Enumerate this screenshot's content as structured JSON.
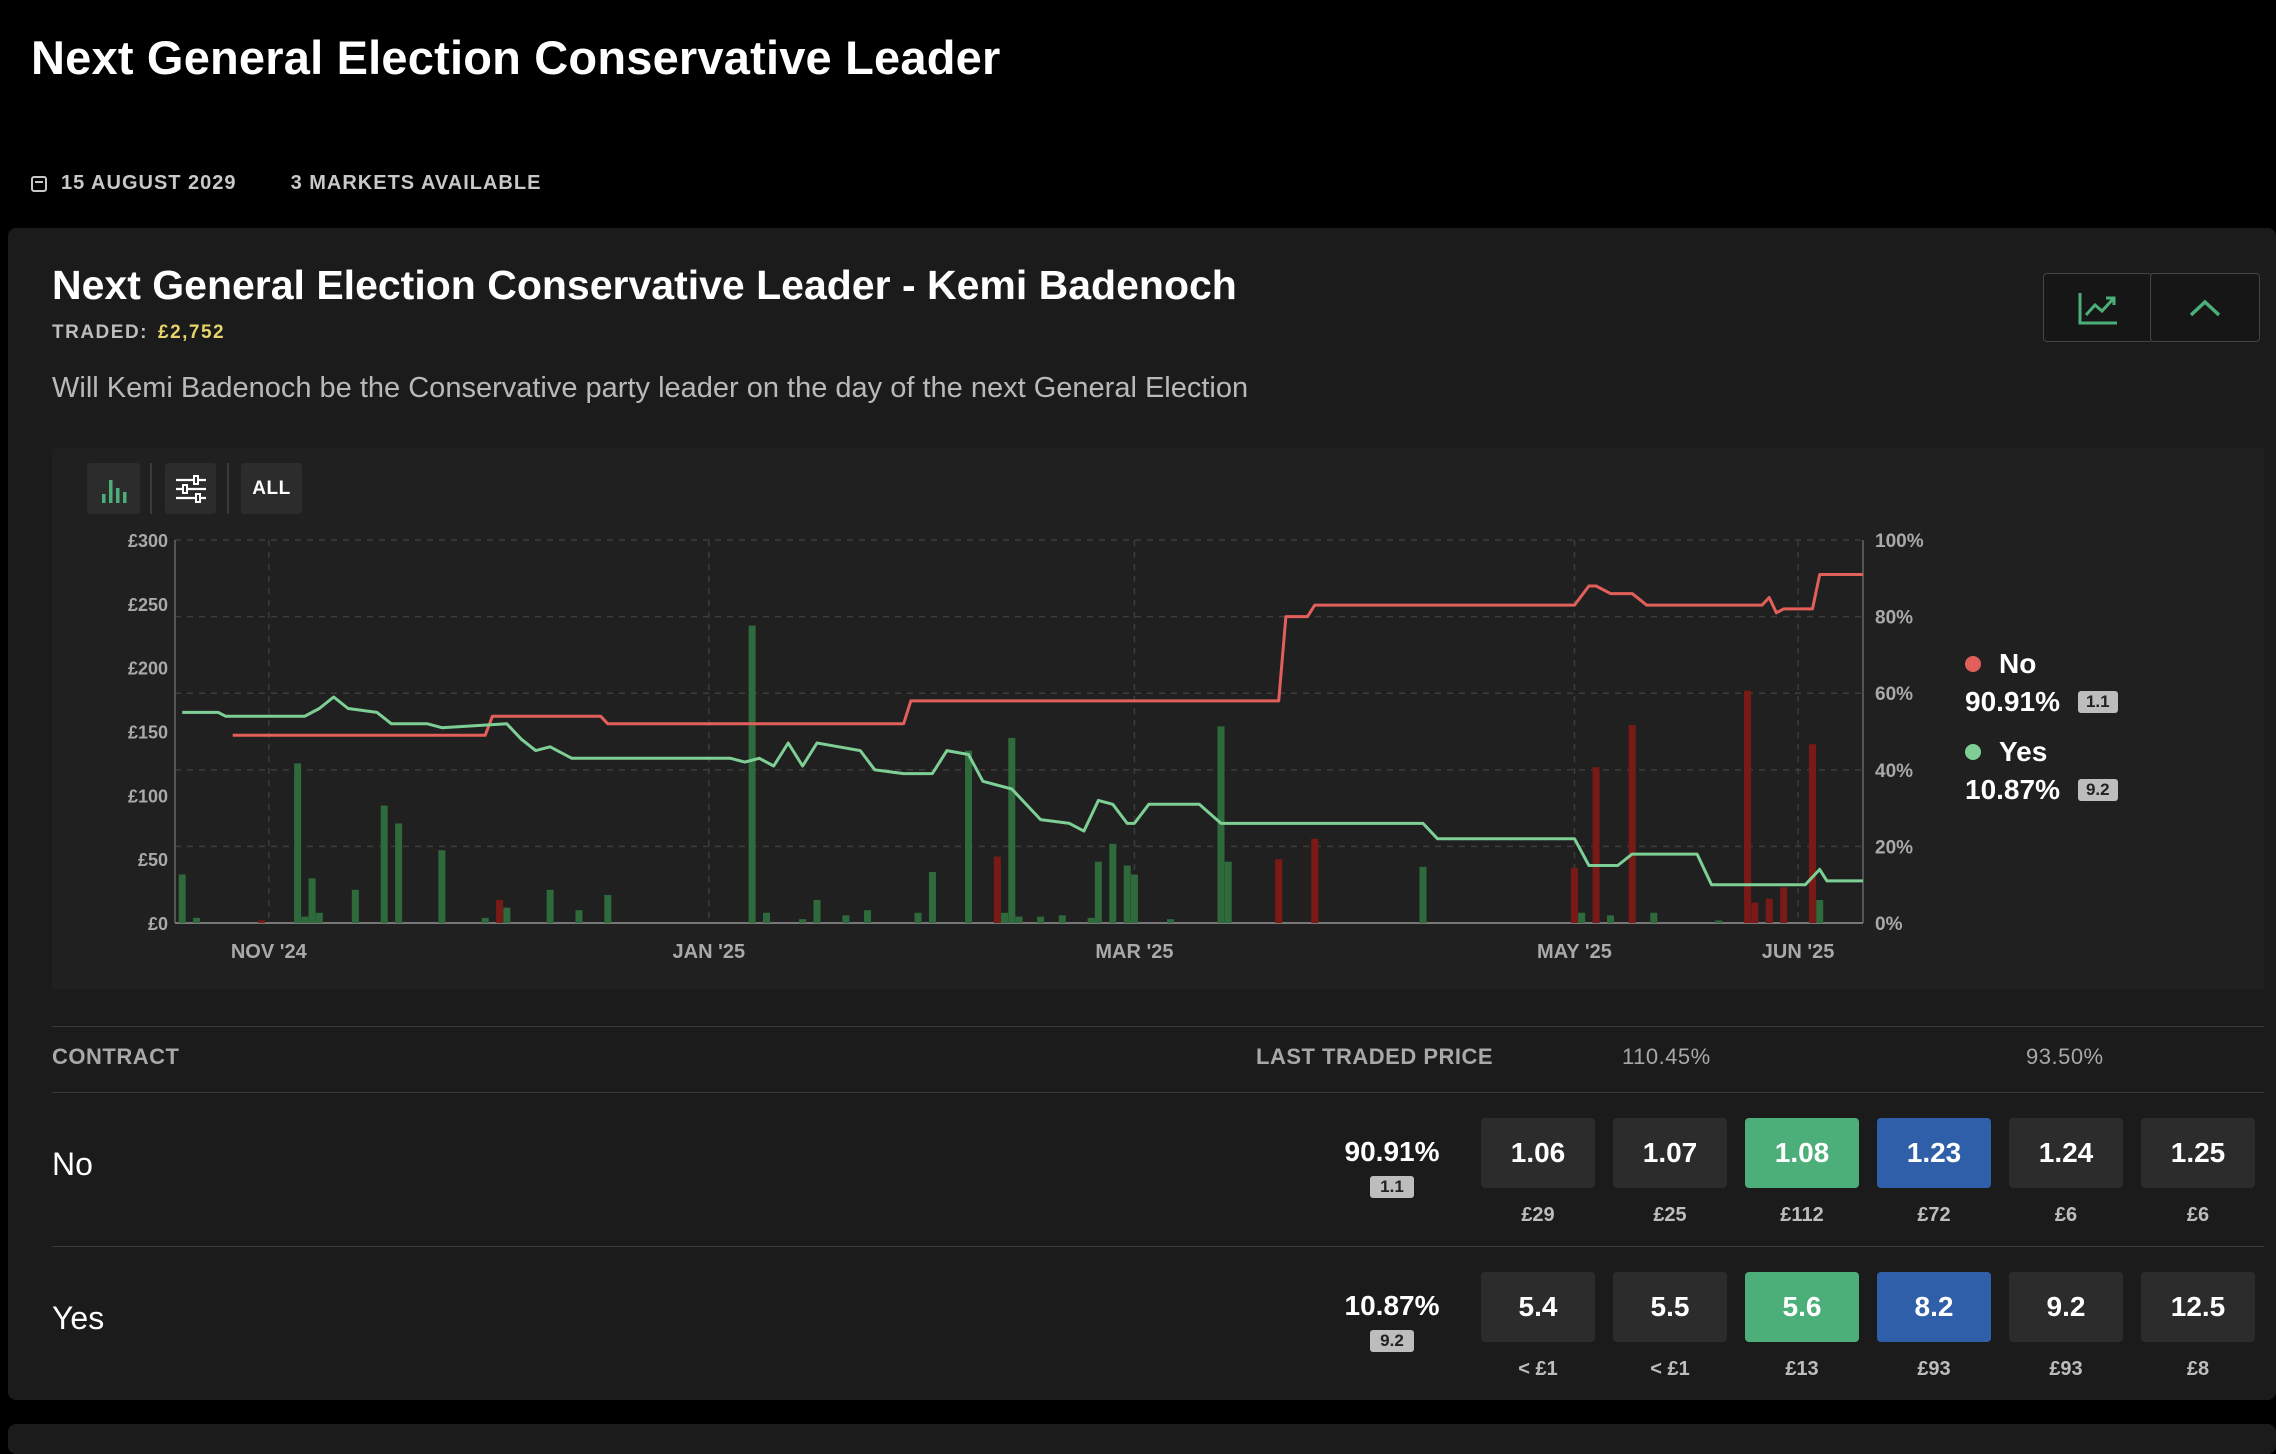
{
  "page": {
    "title": "Next General Election Conservative Leader",
    "date": "15 AUGUST 2029",
    "markets_available": "3 MARKETS AVAILABLE"
  },
  "market": {
    "title": "Next General Election Conservative Leader - Kemi Badenoch",
    "traded_label": "TRADED:",
    "traded_value": "£2,752",
    "description": "Will Kemi Badenoch be the Conservative party leader on the day of the next General Election",
    "chart_button_icon": "line-chart-icon",
    "collapse_button_icon": "chevron-up-icon"
  },
  "toolbar": {
    "volume_icon": "bar-chart-icon",
    "filter_icon": "sliders-icon",
    "range_label": "ALL"
  },
  "legend": [
    {
      "name": "No",
      "pct": "90.91%",
      "odds": "1.1",
      "color": "#e3605a"
    },
    {
      "name": "Yes",
      "pct": "10.87%",
      "odds": "9.2",
      "color": "#7ecf95"
    }
  ],
  "colors": {
    "no": "#e3605a",
    "yes": "#7ecf95",
    "back": "#4caf7a",
    "lay": "#2f5fa8",
    "cell": "#2c2c2c",
    "vol_green": "#2f6a3c",
    "vol_red": "#7a1a16"
  },
  "table": {
    "headers": {
      "contract": "CONTRACT",
      "last_traded": "LAST TRADED PRICE",
      "back_book": "110.45%",
      "lay_book": "93.50%"
    },
    "rows": [
      {
        "name": "No",
        "ltp_pct": "90.91%",
        "ltp_odds": "1.1",
        "cells": [
          {
            "price": "1.06",
            "stake": "£29",
            "kind": "plain"
          },
          {
            "price": "1.07",
            "stake": "£25",
            "kind": "plain"
          },
          {
            "price": "1.08",
            "stake": "£112",
            "kind": "back"
          },
          {
            "price": "1.23",
            "stake": "£72",
            "kind": "lay"
          },
          {
            "price": "1.24",
            "stake": "£6",
            "kind": "plain"
          },
          {
            "price": "1.25",
            "stake": "£6",
            "kind": "plain"
          }
        ]
      },
      {
        "name": "Yes",
        "ltp_pct": "10.87%",
        "ltp_odds": "9.2",
        "cells": [
          {
            "price": "5.4",
            "stake": "< £1",
            "kind": "plain"
          },
          {
            "price": "5.5",
            "stake": "< £1",
            "kind": "plain"
          },
          {
            "price": "5.6",
            "stake": "£13",
            "kind": "back"
          },
          {
            "price": "8.2",
            "stake": "£93",
            "kind": "lay"
          },
          {
            "price": "9.2",
            "stake": "£93",
            "kind": "plain"
          },
          {
            "price": "12.5",
            "stake": "£8",
            "kind": "plain"
          }
        ]
      }
    ]
  },
  "chart_data": {
    "type": "line",
    "x_ticks": [
      "NOV '24",
      "JAN '25",
      "MAR '25",
      "MAY '25",
      "JUN '25"
    ],
    "x_tick_dates": [
      "2024-11-01",
      "2025-01-01",
      "2025-03-01",
      "2025-05-01",
      "2025-06-01"
    ],
    "xlim": [
      "2024-10-19",
      "2025-06-10"
    ],
    "y_left_ticks": [
      "£300",
      "£250",
      "£200",
      "£150",
      "£100",
      "£50",
      "£0"
    ],
    "y_left_lim": [
      0,
      300
    ],
    "y_right_ticks": [
      "100%",
      "80%",
      "60%",
      "40%",
      "20%",
      "0%"
    ],
    "y_right_lim": [
      0,
      100
    ],
    "grid": true,
    "legend_position": "right",
    "series": [
      {
        "name": "No",
        "axis": "right",
        "color": "#e3605a",
        "points": [
          [
            "2024-10-27",
            49
          ],
          [
            "2024-12-01",
            49
          ],
          [
            "2024-12-02",
            54
          ],
          [
            "2024-12-17",
            54
          ],
          [
            "2024-12-18",
            52
          ],
          [
            "2025-01-28",
            52
          ],
          [
            "2025-01-29",
            58
          ],
          [
            "2025-03-21",
            58
          ],
          [
            "2025-03-22",
            80
          ],
          [
            "2025-03-25",
            80
          ],
          [
            "2025-03-26",
            83
          ],
          [
            "2025-05-01",
            83
          ],
          [
            "2025-05-03",
            88
          ],
          [
            "2025-05-04",
            88
          ],
          [
            "2025-05-06",
            86
          ],
          [
            "2025-05-09",
            86
          ],
          [
            "2025-05-11",
            83
          ],
          [
            "2025-05-27",
            83
          ],
          [
            "2025-05-28",
            85
          ],
          [
            "2025-05-29",
            81
          ],
          [
            "2025-05-30",
            82
          ],
          [
            "2025-06-03",
            82
          ],
          [
            "2025-06-04",
            91
          ],
          [
            "2025-06-10",
            91
          ]
        ]
      },
      {
        "name": "Yes",
        "axis": "right",
        "color": "#7ecf95",
        "points": [
          [
            "2024-10-20",
            55
          ],
          [
            "2024-10-25",
            55
          ],
          [
            "2024-10-26",
            54
          ],
          [
            "2024-11-06",
            54
          ],
          [
            "2024-11-08",
            56
          ],
          [
            "2024-11-10",
            59
          ],
          [
            "2024-11-12",
            56
          ],
          [
            "2024-11-16",
            55
          ],
          [
            "2024-11-18",
            52
          ],
          [
            "2024-11-23",
            52
          ],
          [
            "2024-11-25",
            51
          ],
          [
            "2024-12-04",
            52
          ],
          [
            "2024-12-06",
            48
          ],
          [
            "2024-12-08",
            45
          ],
          [
            "2024-12-10",
            46
          ],
          [
            "2024-12-13",
            43
          ],
          [
            "2024-12-31",
            43
          ],
          [
            "2025-01-04",
            43
          ],
          [
            "2025-01-06",
            42
          ],
          [
            "2025-01-08",
            43
          ],
          [
            "2025-01-10",
            41
          ],
          [
            "2025-01-12",
            47
          ],
          [
            "2025-01-14",
            41
          ],
          [
            "2025-01-16",
            47
          ],
          [
            "2025-01-19",
            46
          ],
          [
            "2025-01-22",
            45
          ],
          [
            "2025-01-24",
            40
          ],
          [
            "2025-01-28",
            39
          ],
          [
            "2025-02-01",
            39
          ],
          [
            "2025-02-03",
            45
          ],
          [
            "2025-02-06",
            44
          ],
          [
            "2025-02-08",
            37
          ],
          [
            "2025-02-12",
            35
          ],
          [
            "2025-02-16",
            27
          ],
          [
            "2025-02-20",
            26
          ],
          [
            "2025-02-22",
            24
          ],
          [
            "2025-02-24",
            32
          ],
          [
            "2025-02-26",
            31
          ],
          [
            "2025-02-28",
            26
          ],
          [
            "2025-03-01",
            26
          ],
          [
            "2025-03-03",
            31
          ],
          [
            "2025-03-10",
            31
          ],
          [
            "2025-03-13",
            26
          ],
          [
            "2025-04-10",
            26
          ],
          [
            "2025-04-12",
            22
          ],
          [
            "2025-05-01",
            22
          ],
          [
            "2025-05-03",
            15
          ],
          [
            "2025-05-07",
            15
          ],
          [
            "2025-05-09",
            18
          ],
          [
            "2025-05-18",
            18
          ],
          [
            "2025-05-20",
            10
          ],
          [
            "2025-06-02",
            10
          ],
          [
            "2025-06-04",
            14
          ],
          [
            "2025-06-05",
            11
          ],
          [
            "2025-06-10",
            11
          ]
        ]
      }
    ],
    "volume": {
      "axis": "left",
      "bars": [
        [
          "2024-10-20",
          38,
          "yes"
        ],
        [
          "2024-10-22",
          4,
          "yes"
        ],
        [
          "2024-10-31",
          2,
          "no"
        ],
        [
          "2024-11-05",
          125,
          "yes"
        ],
        [
          "2024-11-06",
          5,
          "yes"
        ],
        [
          "2024-11-07",
          35,
          "yes"
        ],
        [
          "2024-11-08",
          8,
          "yes"
        ],
        [
          "2024-11-13",
          26,
          "yes"
        ],
        [
          "2024-11-17",
          92,
          "yes"
        ],
        [
          "2024-11-19",
          78,
          "yes"
        ],
        [
          "2024-11-25",
          57,
          "yes"
        ],
        [
          "2024-12-01",
          4,
          "yes"
        ],
        [
          "2024-12-03",
          18,
          "no"
        ],
        [
          "2024-12-04",
          12,
          "yes"
        ],
        [
          "2024-12-10",
          26,
          "yes"
        ],
        [
          "2024-12-14",
          10,
          "yes"
        ],
        [
          "2024-12-18",
          22,
          "yes"
        ],
        [
          "2025-01-07",
          233,
          "yes"
        ],
        [
          "2025-01-09",
          8,
          "yes"
        ],
        [
          "2025-01-14",
          3,
          "yes"
        ],
        [
          "2025-01-16",
          18,
          "yes"
        ],
        [
          "2025-01-20",
          6,
          "yes"
        ],
        [
          "2025-01-23",
          10,
          "yes"
        ],
        [
          "2025-01-30",
          8,
          "yes"
        ],
        [
          "2025-02-01",
          40,
          "yes"
        ],
        [
          "2025-02-06",
          135,
          "yes"
        ],
        [
          "2025-02-10",
          52,
          "no"
        ],
        [
          "2025-02-11",
          8,
          "yes"
        ],
        [
          "2025-02-12",
          145,
          "yes"
        ],
        [
          "2025-02-13",
          5,
          "yes"
        ],
        [
          "2025-02-16",
          5,
          "yes"
        ],
        [
          "2025-02-19",
          6,
          "yes"
        ],
        [
          "2025-02-23",
          4,
          "yes"
        ],
        [
          "2025-02-24",
          48,
          "yes"
        ],
        [
          "2025-02-26",
          62,
          "yes"
        ],
        [
          "2025-02-28",
          45,
          "yes"
        ],
        [
          "2025-03-01",
          38,
          "yes"
        ],
        [
          "2025-03-06",
          3,
          "yes"
        ],
        [
          "2025-03-13",
          154,
          "yes"
        ],
        [
          "2025-03-14",
          48,
          "yes"
        ],
        [
          "2025-03-21",
          50,
          "no"
        ],
        [
          "2025-03-26",
          66,
          "no"
        ],
        [
          "2025-04-10",
          44,
          "yes"
        ],
        [
          "2025-05-01",
          43,
          "no"
        ],
        [
          "2025-05-02",
          8,
          "yes"
        ],
        [
          "2025-05-04",
          122,
          "no"
        ],
        [
          "2025-05-06",
          6,
          "yes"
        ],
        [
          "2025-05-09",
          155,
          "no"
        ],
        [
          "2025-05-12",
          8,
          "yes"
        ],
        [
          "2025-05-21",
          2,
          "yes"
        ],
        [
          "2025-05-25",
          182,
          "no"
        ],
        [
          "2025-05-26",
          16,
          "no"
        ],
        [
          "2025-05-28",
          19,
          "no"
        ],
        [
          "2025-05-30",
          28,
          "no"
        ],
        [
          "2025-06-03",
          140,
          "no"
        ],
        [
          "2025-06-04",
          18,
          "yes"
        ]
      ]
    }
  }
}
